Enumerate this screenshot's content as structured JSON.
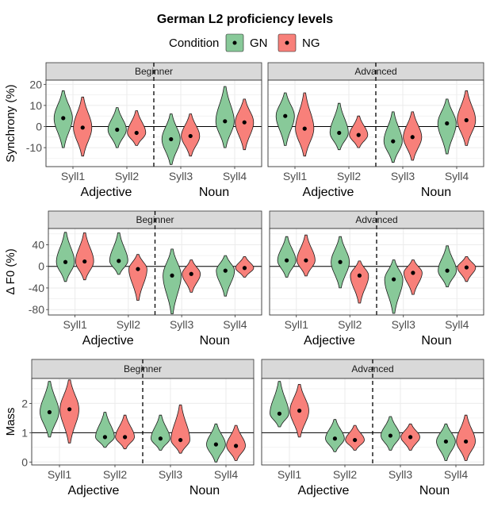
{
  "title": "German L2 proficiency levels",
  "legend": {
    "title": "Condition",
    "items": [
      {
        "label": "GN",
        "color": "#88C999"
      },
      {
        "label": "NG",
        "color": "#F8807A"
      }
    ]
  },
  "chart_data": [
    {
      "type": "violin",
      "ylabel": "Synchrony (%)",
      "yticks": [
        20,
        10,
        0,
        -10
      ],
      "ylim": [
        -19,
        22
      ],
      "hline": 0,
      "categories": [
        "Syll1",
        "Syll2",
        "Syll3",
        "Syll4"
      ],
      "groups": [
        {
          "label": "Adjective",
          "categories": [
            "Syll1",
            "Syll2"
          ]
        },
        {
          "label": "Noun",
          "categories": [
            "Syll3",
            "Syll4"
          ]
        }
      ],
      "panels": [
        {
          "strip": "Beginner",
          "series": [
            {
              "name": "GN",
              "means": [
                4,
                -1.5,
                -6,
                2.5
              ],
              "ranges": [
                [
                  -10,
                  17
                ],
                [
                  -10,
                  9
                ],
                [
                  -18,
                  6
                ],
                [
                  -10,
                  19
                ]
              ]
            },
            {
              "name": "NG",
              "means": [
                -0.5,
                -3,
                -4.5,
                2
              ],
              "ranges": [
                [
                  -14,
                  14
                ],
                [
                  -9,
                  7.5
                ],
                [
                  -14,
                  6
                ],
                [
                  -11,
                  13
                ]
              ]
            }
          ]
        },
        {
          "strip": "Advanced",
          "series": [
            {
              "name": "GN",
              "means": [
                5,
                -3,
                -7,
                1.5
              ],
              "ranges": [
                [
                  -9,
                  16
                ],
                [
                  -11,
                  11
                ],
                [
                  -17,
                  7
                ],
                [
                  -13,
                  13
                ]
              ]
            },
            {
              "name": "NG",
              "means": [
                -1,
                -4,
                -5,
                3
              ],
              "ranges": [
                [
                  -14,
                  16
                ],
                [
                  -10,
                  5
                ],
                [
                  -16,
                  7
                ],
                [
                  -9,
                  17
                ]
              ]
            }
          ]
        }
      ]
    },
    {
      "type": "violin",
      "ylabel": "Δ F0 (%)",
      "yticks": [
        40,
        0,
        -40,
        -80
      ],
      "ylim": [
        -90,
        70
      ],
      "hline": 0,
      "categories": [
        "Syll1",
        "Syll2",
        "Syll3",
        "Syll4"
      ],
      "groups": [
        {
          "label": "Adjective",
          "categories": [
            "Syll1",
            "Syll2"
          ]
        },
        {
          "label": "Noun",
          "categories": [
            "Syll3",
            "Syll4"
          ]
        }
      ],
      "panels": [
        {
          "strip": "Beginner",
          "series": [
            {
              "name": "GN",
              "means": [
                8,
                10,
                -17,
                -8
              ],
              "ranges": [
                [
                  -28,
                  63
                ],
                [
                  -15,
                  62
                ],
                [
                  -88,
                  32
                ],
                [
                  -55,
                  20
                ]
              ]
            },
            {
              "name": "NG",
              "means": [
                9,
                -5,
                -14,
                -3
              ],
              "ranges": [
                [
                  -25,
                  62
                ],
                [
                  -63,
                  22
                ],
                [
                  -48,
                  12
                ],
                [
                  -20,
                  18
                ]
              ]
            }
          ]
        },
        {
          "strip": "Advanced",
          "series": [
            {
              "name": "GN",
              "means": [
                11,
                8,
                -24,
                -8
              ],
              "ranges": [
                [
                  -20,
                  55
                ],
                [
                  -40,
                  55
                ],
                [
                  -87,
                  12
                ],
                [
                  -38,
                  38
                ]
              ]
            },
            {
              "name": "NG",
              "means": [
                11,
                -17,
                -12,
                -2
              ],
              "ranges": [
                [
                  -18,
                  58
                ],
                [
                  -68,
                  10
                ],
                [
                  -52,
                  12
                ],
                [
                  -28,
                  18
                ]
              ]
            }
          ]
        }
      ]
    },
    {
      "type": "violin",
      "ylabel": "Mass",
      "yticks": [
        2,
        1,
        0
      ],
      "ylim": [
        -0.1,
        2.85
      ],
      "hline": 1,
      "categories": [
        "Syll1",
        "Syll2",
        "Syll3",
        "Syll4"
      ],
      "groups": [
        {
          "label": "Adjective",
          "categories": [
            "Syll1",
            "Syll2"
          ]
        },
        {
          "label": "Noun",
          "categories": [
            "Syll3",
            "Syll4"
          ]
        }
      ],
      "panels": [
        {
          "strip": "Beginner",
          "series": [
            {
              "name": "GN",
              "means": [
                1.7,
                0.85,
                0.8,
                0.6
              ],
              "ranges": [
                [
                  0.85,
                  2.75
                ],
                [
                  0.5,
                  1.7
                ],
                [
                  0.4,
                  1.6
                ],
                [
                  0.0,
                  1.3
                ]
              ]
            },
            {
              "name": "NG",
              "means": [
                1.8,
                0.85,
                0.75,
                0.55
              ],
              "ranges": [
                [
                  0.65,
                  2.8
                ],
                [
                  0.45,
                  1.6
                ],
                [
                  0.3,
                  1.95
                ],
                [
                  0.05,
                  1.25
                ]
              ]
            }
          ]
        },
        {
          "strip": "Advanced",
          "series": [
            {
              "name": "GN",
              "means": [
                1.65,
                0.8,
                0.9,
                0.7
              ],
              "ranges": [
                [
                  1.2,
                  2.75
                ],
                [
                  0.35,
                  1.45
                ],
                [
                  0.4,
                  1.55
                ],
                [
                  0.05,
                  1.3
                ]
              ]
            },
            {
              "name": "NG",
              "means": [
                1.75,
                0.75,
                0.85,
                0.7
              ],
              "ranges": [
                [
                  0.85,
                  2.65
                ],
                [
                  0.4,
                  1.25
                ],
                [
                  0.4,
                  1.3
                ],
                [
                  0.05,
                  1.6
                ]
              ]
            }
          ]
        }
      ]
    }
  ]
}
